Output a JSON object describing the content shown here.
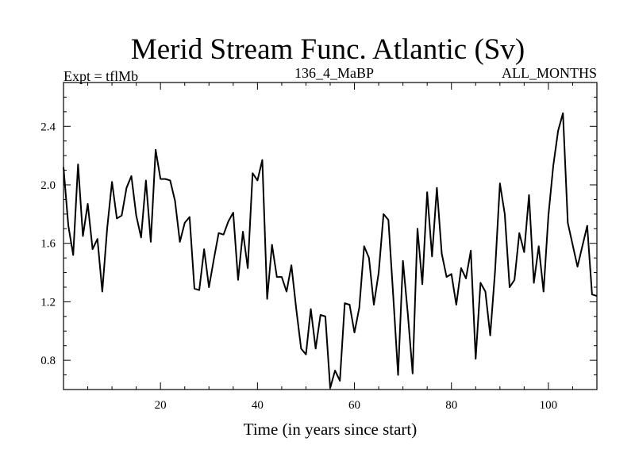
{
  "chart_data": {
    "type": "line",
    "title": "Merid Stream Func. Atlantic (Sv)",
    "subtitle_left": "Expt = tflMb",
    "subtitle_center": "136_4_MaBP",
    "subtitle_right": "ALL_MONTHS",
    "xlabel": "Time (in years since start)",
    "ylabel": "",
    "xlim": [
      0,
      110
    ],
    "ylim": [
      0.6,
      2.7
    ],
    "xticks": [
      20,
      40,
      60,
      80,
      100
    ],
    "yticks": [
      0.8,
      1.2,
      1.6,
      2.0,
      2.4
    ],
    "xtick_labels": [
      "20",
      "40",
      "60",
      "80",
      "100"
    ],
    "ytick_labels": [
      "0.8",
      "1.2",
      "1.6",
      "2.0",
      "2.4"
    ],
    "grid": false,
    "series": [
      {
        "name": "Merid Stream Func. Atlantic",
        "color": "#000000",
        "x": [
          0,
          1,
          2,
          3,
          4,
          5,
          6,
          7,
          8,
          9,
          10,
          11,
          12,
          13,
          14,
          15,
          16,
          17,
          18,
          19,
          20,
          21,
          22,
          23,
          24,
          25,
          26,
          27,
          28,
          29,
          30,
          31,
          32,
          33,
          34,
          35,
          36,
          37,
          38,
          39,
          40,
          41,
          42,
          43,
          44,
          45,
          46,
          47,
          48,
          49,
          50,
          51,
          52,
          53,
          54,
          55,
          56,
          57,
          58,
          59,
          60,
          61,
          62,
          63,
          64,
          65,
          66,
          67,
          68,
          69,
          70,
          71,
          72,
          73,
          74,
          75,
          76,
          77,
          78,
          79,
          80,
          81,
          82,
          83,
          84,
          85,
          86,
          87,
          88,
          89,
          90,
          91,
          92,
          93,
          94,
          95,
          96,
          97,
          98,
          99,
          100,
          101,
          102,
          103,
          104,
          105,
          106,
          107,
          108,
          109,
          110
        ],
        "values": [
          2.12,
          1.72,
          1.52,
          2.14,
          1.65,
          1.87,
          1.56,
          1.63,
          1.27,
          1.7,
          2.02,
          1.77,
          1.79,
          1.98,
          2.06,
          1.79,
          1.64,
          2.03,
          1.61,
          2.24,
          2.04,
          2.04,
          2.03,
          1.89,
          1.61,
          1.74,
          1.78,
          1.29,
          1.28,
          1.56,
          1.3,
          1.49,
          1.67,
          1.66,
          1.75,
          1.81,
          1.35,
          1.68,
          1.43,
          2.08,
          2.03,
          2.17,
          1.22,
          1.59,
          1.37,
          1.37,
          1.27,
          1.45,
          1.15,
          0.88,
          0.84,
          1.15,
          0.88,
          1.11,
          1.1,
          0.61,
          0.73,
          0.66,
          1.19,
          1.18,
          0.99,
          1.16,
          1.58,
          1.5,
          1.18,
          1.4,
          1.8,
          1.76,
          1.24,
          0.7,
          1.48,
          1.12,
          0.71,
          1.7,
          1.32,
          1.95,
          1.51,
          1.98,
          1.53,
          1.37,
          1.39,
          1.18,
          1.43,
          1.36,
          1.55,
          0.81,
          1.33,
          1.27,
          0.97,
          1.41,
          2.01,
          1.8,
          1.3,
          1.35,
          1.67,
          1.54,
          1.93,
          1.33,
          1.58,
          1.27,
          1.79,
          2.13,
          2.37,
          2.49,
          1.74,
          1.59,
          1.44,
          1.58,
          1.72,
          1.25,
          1.24
        ]
      }
    ]
  }
}
